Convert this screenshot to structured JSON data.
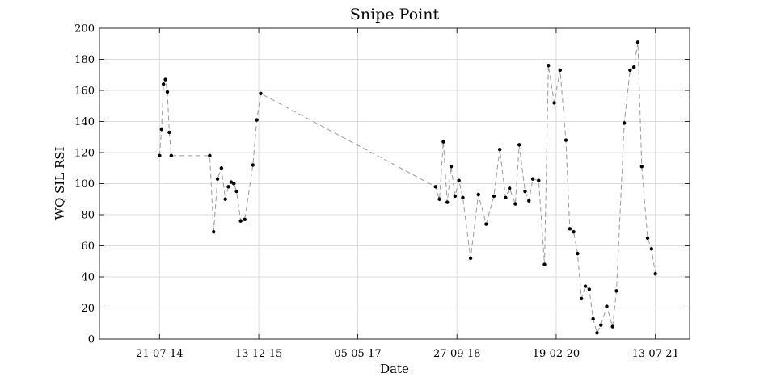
{
  "chart_data": {
    "type": "line",
    "title": "Snipe Point",
    "xlabel": "Date",
    "ylabel": "WQ SIL RSI",
    "x_axis_type": "date",
    "x_range": [
      "2013-09-15",
      "2022-01-05"
    ],
    "ylim": [
      0,
      200
    ],
    "yticks": [
      0,
      20,
      40,
      60,
      80,
      100,
      120,
      140,
      160,
      180,
      200
    ],
    "xticks": [
      {
        "date": "2014-07-21",
        "label": "21-07-14"
      },
      {
        "date": "2015-12-13",
        "label": "13-12-15"
      },
      {
        "date": "2017-05-05",
        "label": "05-05-17"
      },
      {
        "date": "2018-09-27",
        "label": "27-09-18"
      },
      {
        "date": "2020-02-19",
        "label": "19-02-20"
      },
      {
        "date": "2021-07-13",
        "label": "13-07-21"
      }
    ],
    "grid": true,
    "line_style": "dashed",
    "line_color": "#9a9a9a",
    "marker_color": "#000000",
    "series": [
      {
        "x": [
          "2014-07-21",
          "2014-07-31",
          "2014-08-10",
          "2014-08-20",
          "2014-08-30",
          "2014-09-09",
          "2014-09-19",
          "2015-04-05",
          "2015-04-25",
          "2015-05-15",
          "2015-06-04",
          "2015-06-24",
          "2015-07-10",
          "2015-07-24",
          "2015-08-07",
          "2015-08-21",
          "2015-09-11",
          "2015-10-02",
          "2015-11-13",
          "2015-12-03",
          "2015-12-23",
          "2018-06-09",
          "2018-06-29",
          "2018-07-19",
          "2018-08-08",
          "2018-08-28",
          "2018-09-17",
          "2018-10-07",
          "2018-10-27",
          "2018-12-06",
          "2019-01-15",
          "2019-02-24",
          "2019-04-05",
          "2019-05-05",
          "2019-06-04",
          "2019-06-24",
          "2019-07-24",
          "2019-08-13",
          "2019-09-12",
          "2019-10-02",
          "2019-10-22",
          "2019-11-21",
          "2019-12-21",
          "2020-01-10",
          "2020-02-09",
          "2020-03-10",
          "2020-04-09",
          "2020-04-29",
          "2020-05-19",
          "2020-06-08",
          "2020-06-28",
          "2020-07-18",
          "2020-08-07",
          "2020-08-27",
          "2020-09-16",
          "2020-10-06",
          "2020-11-05",
          "2020-12-05",
          "2020-12-25",
          "2021-02-03",
          "2021-03-05",
          "2021-03-25",
          "2021-04-14",
          "2021-05-04",
          "2021-06-03",
          "2021-06-23",
          "2021-07-13"
        ],
        "values": [
          118,
          135,
          164,
          167,
          159,
          133,
          118,
          118,
          69,
          103,
          110,
          90,
          98,
          101,
          100,
          95,
          76,
          77,
          112,
          141,
          158,
          98,
          90,
          127,
          88,
          111,
          92,
          102,
          91,
          52,
          93,
          74,
          92,
          122,
          91,
          97,
          87,
          125,
          95,
          89,
          103,
          102,
          48,
          176,
          152,
          173,
          128,
          71,
          69,
          55,
          26,
          34,
          32,
          13,
          4,
          9,
          21,
          8,
          31,
          139,
          173,
          175,
          191,
          111,
          65,
          58,
          42
        ]
      }
    ]
  }
}
